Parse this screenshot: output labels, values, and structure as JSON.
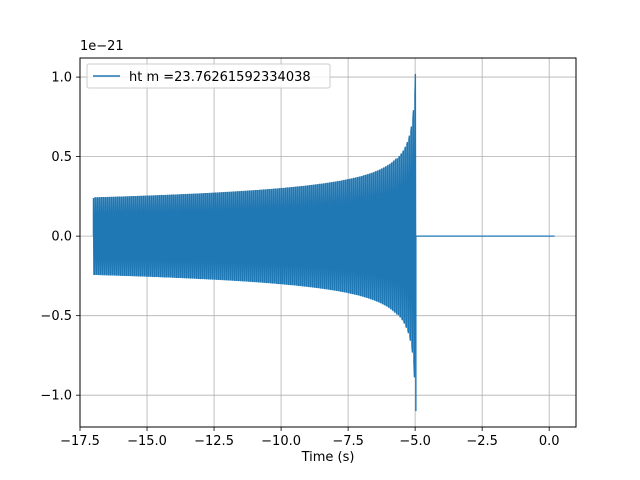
{
  "chart_data": {
    "type": "line",
    "title": "",
    "xlabel": "Time (s)",
    "ylabel": "",
    "y_scale_label": "1e−21",
    "xlim": [
      -17.5,
      1.0
    ],
    "ylim": [
      -1.2,
      1.12
    ],
    "grid": true,
    "legend_placement": "top-left",
    "x_ticks": [
      -17.5,
      -15.0,
      -12.5,
      -10.0,
      -7.5,
      -5.0,
      -2.5,
      0.0
    ],
    "x_tick_labels": [
      "−17.5",
      "−15.0",
      "−12.5",
      "−10.0",
      "−7.5",
      "−5.0",
      "−2.5",
      "0.0"
    ],
    "y_ticks": [
      -1.0,
      -0.5,
      0.0,
      0.5,
      1.0
    ],
    "y_tick_labels": [
      "−1.0",
      "−0.5",
      "0.0",
      "0.5",
      "1.0"
    ],
    "series": [
      {
        "name": "ht m =23.76261592334038",
        "color": "#1f77b4",
        "envelope": {
          "start_x": -17.0,
          "merger_x": -5.0,
          "end_x": 0.2,
          "start_amplitude": 0.24,
          "peak_max": 1.02,
          "peak_min": -1.1
        }
      }
    ]
  }
}
